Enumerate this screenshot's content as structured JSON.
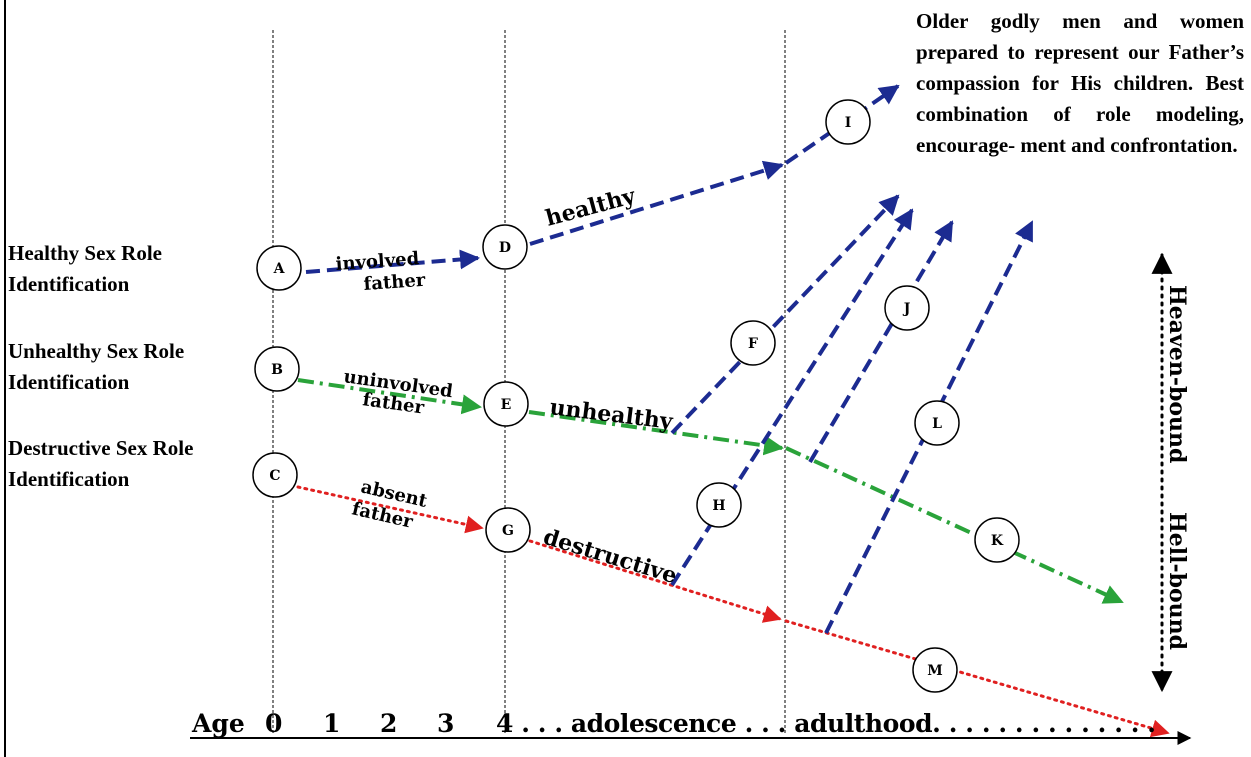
{
  "row_labels": {
    "healthy": [
      "Healthy Sex Role",
      "Identification"
    ],
    "unhealthy": [
      "Unhealthy Sex Role",
      "Identification"
    ],
    "destructive": [
      "Destructive Sex Role",
      "Identification"
    ]
  },
  "caption": [
    "Older godly men and women",
    "prepared to represent our",
    "Father’s compassion for His",
    "children. Best combination",
    "of role modeling, encourage-",
    "ment and confrontation."
  ],
  "nodes": {
    "A": "A",
    "B": "B",
    "C": "C",
    "D": "D",
    "E": "E",
    "F": "F",
    "G": "G",
    "H": "H",
    "I": "I",
    "J": "J",
    "K": "K",
    "L": "L",
    "M": "M"
  },
  "path_labels": {
    "involved_1": "involved",
    "involved_2": "father",
    "uninvolved_1": "uninvolved",
    "uninvolved_2": "father",
    "absent_1": "absent",
    "absent_2": "father",
    "healthy": "healthy",
    "unhealthy": "unhealthy",
    "destructive": "destructive"
  },
  "axis": {
    "title": "Age",
    "ticks": [
      "0",
      "1",
      "2",
      "3",
      "4 . . . adolescence . . . adulthood. . . . . . . . . . . . . ."
    ]
  },
  "side": {
    "top": "Heaven-bound",
    "bottom": "Hell-bound"
  },
  "colors": {
    "healthy_line": "#1c2b91",
    "unhealthy_line": "#2aa33a",
    "destructive_line": "#e02020",
    "text": "#000000"
  }
}
